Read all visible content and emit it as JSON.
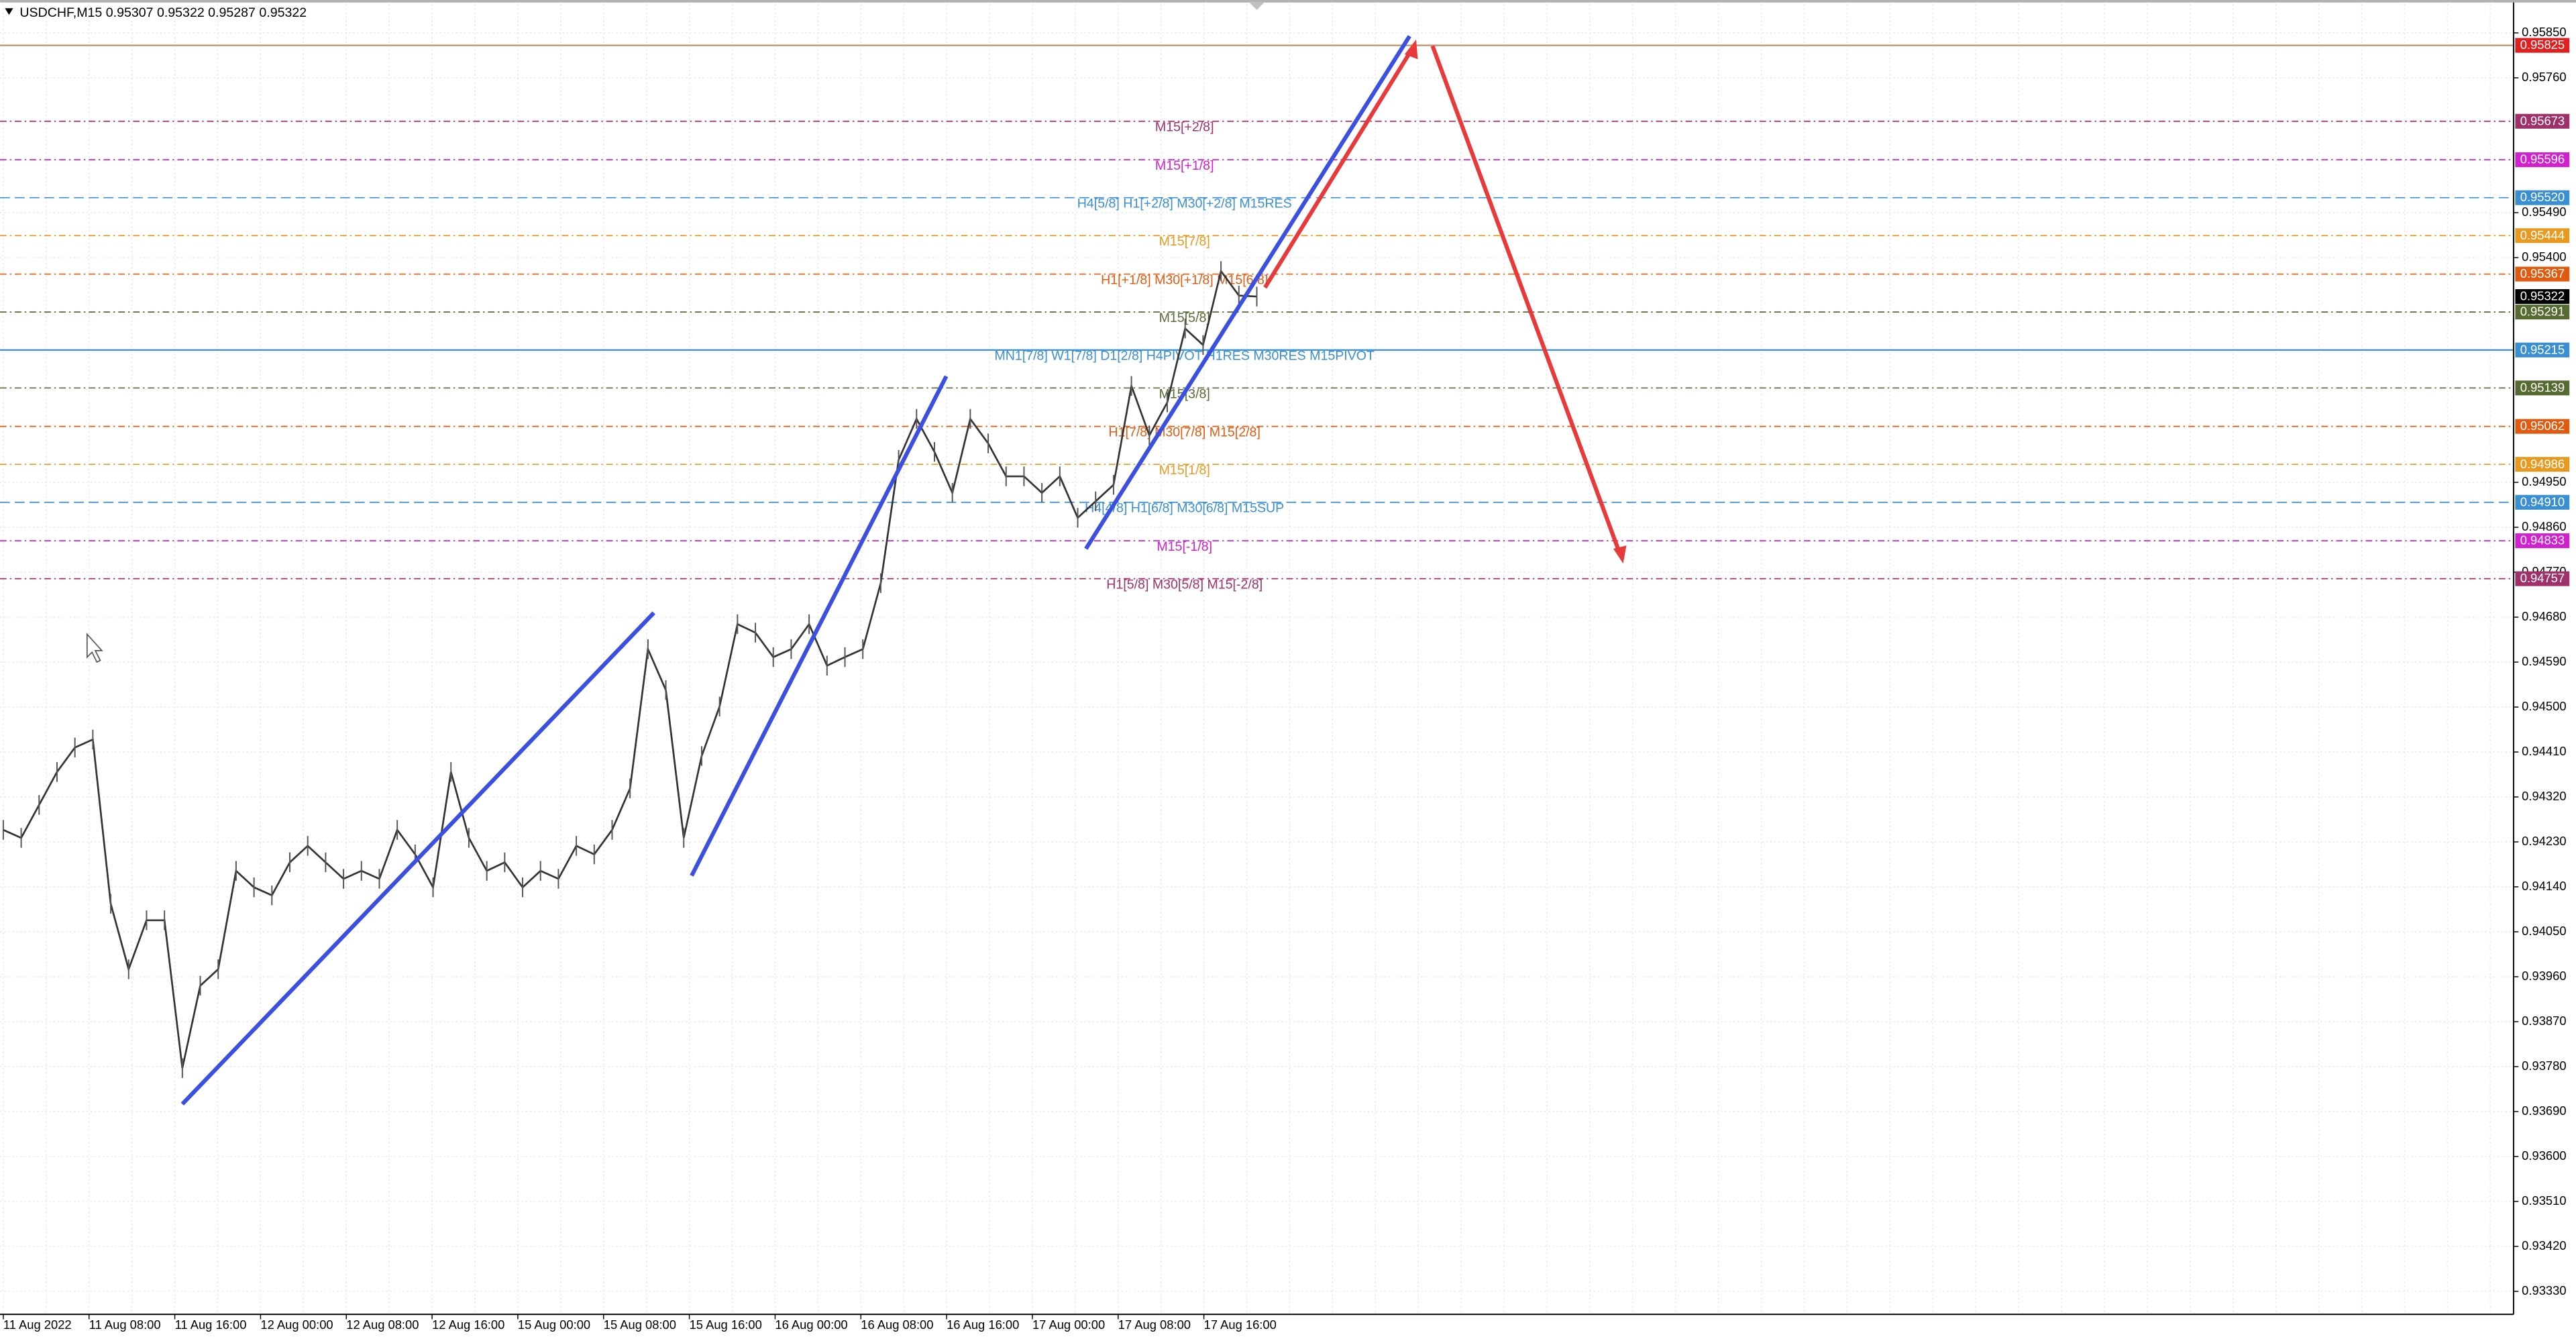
{
  "header": "USDCHF,M15  0.95307 0.95322 0.95287 0.95322",
  "price_axis": {
    "top": 0.9585,
    "bottom": 0.9333,
    "ticks": [
      {
        "value": 0.9585,
        "label": "0.95850"
      },
      {
        "value": 0.9576,
        "label": "0.95760"
      },
      {
        "value": 0.9549,
        "label": "0.95490"
      },
      {
        "value": 0.954,
        "label": "0.95400"
      },
      {
        "value": 0.9495,
        "label": "0.94950"
      },
      {
        "value": 0.9486,
        "label": "0.94860"
      },
      {
        "value": 0.9477,
        "label": "0.94770"
      },
      {
        "value": 0.9468,
        "label": "0.94680"
      },
      {
        "value": 0.9459,
        "label": "0.94590"
      },
      {
        "value": 0.945,
        "label": "0.94500"
      },
      {
        "value": 0.9441,
        "label": "0.94410"
      },
      {
        "value": 0.9432,
        "label": "0.94320"
      },
      {
        "value": 0.9423,
        "label": "0.94230"
      },
      {
        "value": 0.9414,
        "label": "0.94140"
      },
      {
        "value": 0.9405,
        "label": "0.94050"
      },
      {
        "value": 0.9396,
        "label": "0.93960"
      },
      {
        "value": 0.9387,
        "label": "0.93870"
      },
      {
        "value": 0.9378,
        "label": "0.93780"
      },
      {
        "value": 0.9369,
        "label": "0.93690"
      },
      {
        "value": 0.936,
        "label": "0.93600"
      },
      {
        "value": 0.9351,
        "label": "0.93510"
      },
      {
        "value": 0.9342,
        "label": "0.93420"
      },
      {
        "value": 0.9333,
        "label": "0.93330"
      }
    ]
  },
  "time_axis": [
    "11 Aug 2022",
    "11 Aug 08:00",
    "11 Aug 16:00",
    "12 Aug 00:00",
    "12 Aug 08:00",
    "12 Aug 16:00",
    "15 Aug 00:00",
    "15 Aug 08:00",
    "15 Aug 16:00",
    "16 Aug 00:00",
    "16 Aug 08:00",
    "16 Aug 16:00",
    "17 Aug 00:00",
    "17 Aug 08:00",
    "17 Aug 16:00"
  ],
  "levels": [
    {
      "price": 0.95825,
      "tag": "0.95825",
      "color": "#c0906a",
      "tag_color": "#e02020",
      "style": "solid"
    },
    {
      "price": 0.95673,
      "tag": "0.95673",
      "label": "M15[+2/8]",
      "color": "#a0306a",
      "tag_color": "#a0306a",
      "style": "dashdot"
    },
    {
      "price": 0.95596,
      "tag": "0.95596",
      "label": "M15[+1/8]",
      "color": "#d020d0",
      "tag_color": "#d020d0",
      "style": "dashdot"
    },
    {
      "price": 0.9552,
      "tag": "0.95520",
      "label": "H4[5/8] H1[+2/8] M30[+2/8] M15RES",
      "color": "#3a8fd0",
      "tag_color": "#3a8fd0",
      "style": "dashed"
    },
    {
      "price": 0.95444,
      "tag": "0.95444",
      "label": "M15[7/8]",
      "color": "#e89a20",
      "tag_color": "#e89a20",
      "style": "dashdot"
    },
    {
      "price": 0.95367,
      "tag": "0.95367",
      "label": "H1[+1/8] M30[+1/8] M15[6/8]",
      "color": "#e05a10",
      "tag_color": "#e05a10",
      "style": "dashdot"
    },
    {
      "price": 0.95322,
      "tag": "0.95322",
      "color": "#9a9a9a",
      "tag_color": "#000000",
      "style": "none"
    },
    {
      "price": 0.95291,
      "tag": "0.95291",
      "label": "M15[5/8]",
      "color": "#556b2f",
      "tag_color": "#556b2f",
      "style": "dashdot"
    },
    {
      "price": 0.95215,
      "tag": "0.95215",
      "label": "MN1[7/8] W1[7/8] D1[2/8] H4PIVOT H1RES M30RES M15PIVOT",
      "color": "#3a8fd0",
      "tag_color": "#3a8fd0",
      "style": "solid"
    },
    {
      "price": 0.95139,
      "tag": "0.95139",
      "label": "M15[3/8]",
      "color": "#556b2f",
      "tag_color": "#556b2f",
      "style": "dashdot"
    },
    {
      "price": 0.95062,
      "tag": "0.95062",
      "label": "H1[7/8] M30[7/8] M15[2/8]",
      "color": "#e05a10",
      "tag_color": "#e05a10",
      "style": "dashdot"
    },
    {
      "price": 0.94986,
      "tag": "0.94986",
      "label": "M15[1/8]",
      "color": "#e89a20",
      "tag_color": "#e89a20",
      "style": "dashdot"
    },
    {
      "price": 0.9491,
      "tag": "0.94910",
      "label": "H4[4/8] H1[6/8] M30[6/8] M15SUP",
      "color": "#3a8fd0",
      "tag_color": "#3a8fd0",
      "style": "dashed"
    },
    {
      "price": 0.94833,
      "tag": "0.94833",
      "label": "M15[-1/8]",
      "color": "#d020d0",
      "tag_color": "#d020d0",
      "style": "dashdot"
    },
    {
      "price": 0.94757,
      "tag": "0.94757",
      "label": "H1[5/8] M30[5/8] M15[-2/8]",
      "color": "#a0306a",
      "tag_color": "#a0306a",
      "style": "dashdot"
    }
  ],
  "price_trace": [
    0.94254,
    0.94238,
    0.94304,
    0.9437,
    0.94419,
    0.94435,
    0.94106,
    0.93975,
    0.94073,
    0.94073,
    0.93777,
    0.93942,
    0.93975,
    0.94172,
    0.94139,
    0.94123,
    0.94189,
    0.94222,
    0.94189,
    0.94156,
    0.94172,
    0.94156,
    0.94254,
    0.94205,
    0.94139,
    0.9437,
    0.94238,
    0.94172,
    0.94189,
    0.94139,
    0.94172,
    0.94156,
    0.94222,
    0.94205,
    0.94254,
    0.94337,
    0.94616,
    0.94534,
    0.94238,
    0.94402,
    0.94501,
    0.94666,
    0.94649,
    0.946,
    0.94616,
    0.94666,
    0.94583,
    0.946,
    0.94616,
    0.94748,
    0.94995,
    0.95077,
    0.95011,
    0.94929,
    0.95077,
    0.95028,
    0.94962,
    0.94962,
    0.94929,
    0.94962,
    0.94879,
    0.94912,
    0.94945,
    0.95143,
    0.95044,
    0.9511,
    0.95258,
    0.95225,
    0.95373,
    0.95324,
    0.95322
  ]
}
